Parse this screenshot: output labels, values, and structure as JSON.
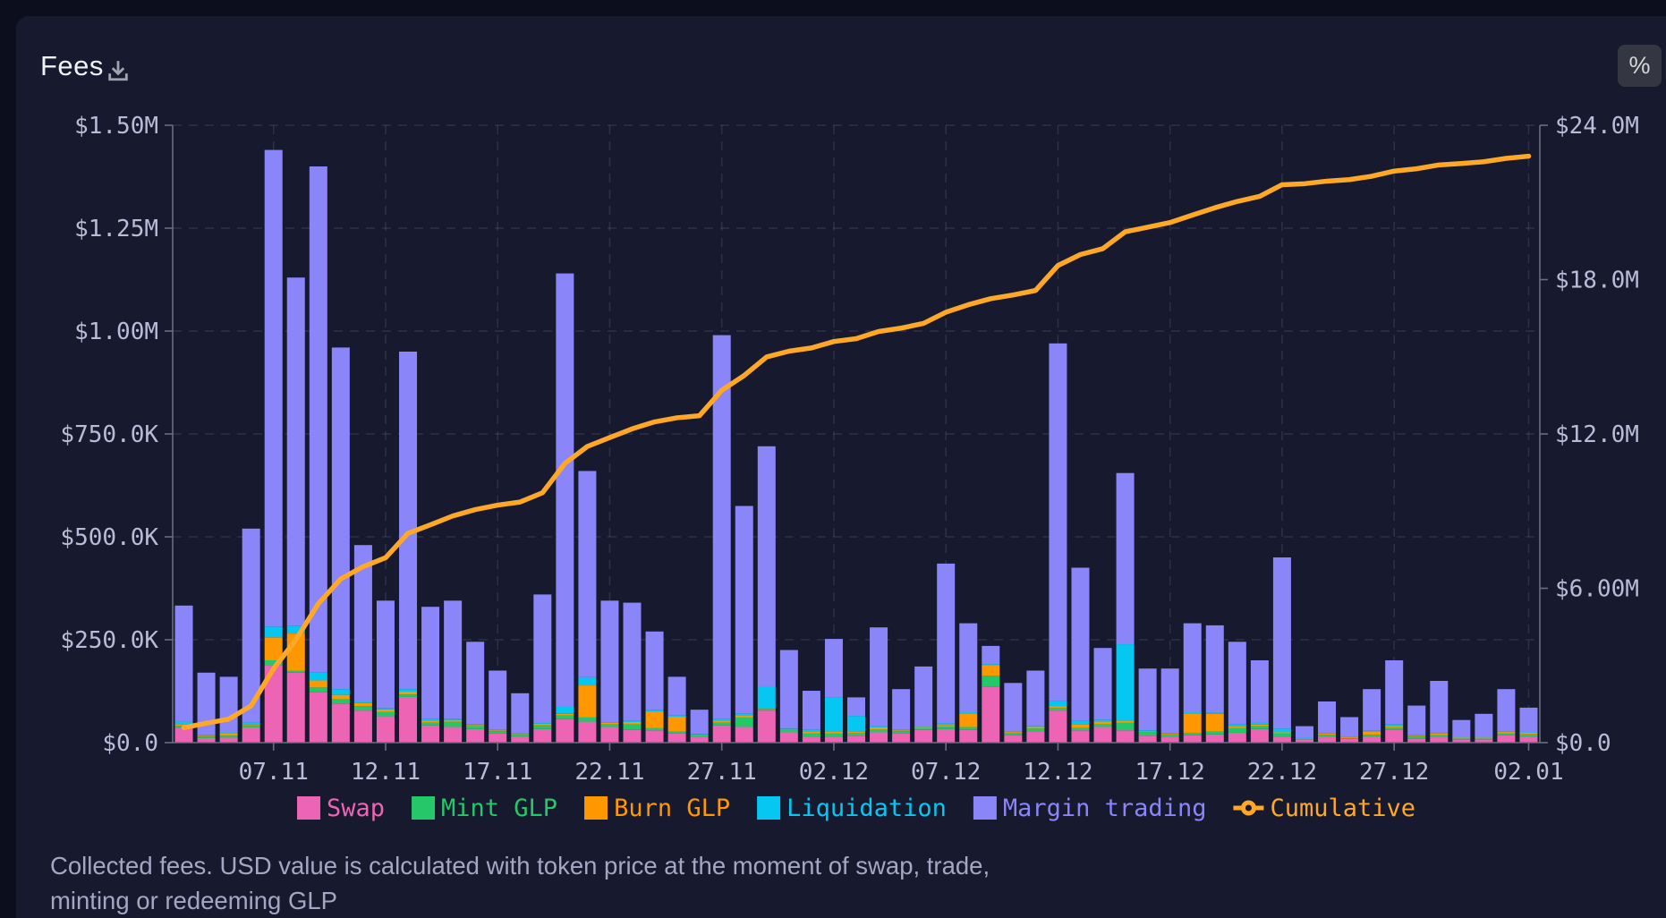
{
  "header": {
    "title": "Fees",
    "percent_button": "%"
  },
  "footnote": {
    "line1": "Collected fees. USD value is calculated with token price at the moment of swap, trade,",
    "line2": "minting or redeeming GLP"
  },
  "colors": {
    "page_bg": "#0c0e1d",
    "card_bg": "#171a2e",
    "swap": "#ee64b4",
    "mint_glp": "#24c869",
    "burn_glp": "#ff9800",
    "liquidation": "#06c7f2",
    "margin_trading": "#8a85f8",
    "cumulative": "#ffa828"
  },
  "chart_data": {
    "type": "bar",
    "subtype": "stacked-bars-with-cumulative-line",
    "units": "USD thousands",
    "title": "Fees",
    "bar_count": 61,
    "x_ticks": {
      "indices": [
        4,
        9,
        14,
        19,
        24,
        29,
        34,
        39,
        44,
        49,
        54,
        60
      ],
      "labels": [
        "07.11",
        "12.11",
        "17.11",
        "22.11",
        "27.11",
        "02.12",
        "07.12",
        "12.12",
        "17.12",
        "22.12",
        "27.12",
        "02.01"
      ]
    },
    "left_axis": {
      "max": 1500,
      "tick_values": [
        0,
        250,
        500,
        750,
        1000,
        1250,
        1500
      ],
      "tick_labels": [
        "$0.0",
        "$250.0K",
        "$500.0K",
        "$750.0K",
        "$1.00M",
        "$1.25M",
        "$1.50M"
      ]
    },
    "right_axis": {
      "max": 24000,
      "tick_values": [
        0,
        6000,
        12000,
        18000,
        24000
      ],
      "tick_labels": [
        "$0.0",
        "$6.00M",
        "$12.0M",
        "$18.0M",
        "$24.0M"
      ]
    },
    "series": [
      {
        "name": "Swap",
        "color": "#ee64b4",
        "values": [
          36,
          11,
          12,
          37,
          187,
          170,
          122,
          95,
          78,
          64,
          111,
          42,
          38,
          33,
          22,
          15,
          33,
          57,
          51,
          38,
          31,
          30,
          22,
          13,
          42,
          38,
          78,
          25,
          15,
          15,
          17,
          25,
          22,
          31,
          33,
          31,
          135,
          18,
          28,
          78,
          30,
          38,
          30,
          17,
          13,
          18,
          20,
          24,
          33,
          15,
          8,
          15,
          9,
          15,
          31,
          9,
          13,
          8,
          8,
          18,
          15
        ]
      },
      {
        "name": "Mint GLP",
        "color": "#24c869",
        "values": [
          5,
          4,
          5,
          5,
          13,
          5,
          12,
          10,
          11,
          11,
          6,
          7,
          13,
          7,
          6,
          4,
          9,
          9,
          10,
          6,
          13,
          5,
          5,
          5,
          7,
          23,
          4,
          6,
          7,
          7,
          7,
          6,
          6,
          4,
          6,
          7,
          28,
          6,
          6,
          6,
          6,
          6,
          18,
          9,
          7,
          6,
          7,
          11,
          7,
          7,
          2,
          4,
          2,
          4,
          6,
          6,
          5,
          2,
          3,
          4,
          5
        ]
      },
      {
        "name": "Burn GLP",
        "color": "#ff9800",
        "values": [
          4,
          2,
          6,
          3,
          56,
          90,
          17,
          11,
          7,
          6,
          7,
          5,
          4,
          3,
          2,
          2,
          4,
          4,
          78,
          4,
          6,
          40,
          36,
          2,
          5,
          6,
          2,
          2,
          5,
          5,
          3,
          6,
          2,
          3,
          4,
          33,
          25,
          2,
          4,
          4,
          9,
          7,
          6,
          2,
          2,
          47,
          43,
          5,
          4,
          3,
          1,
          3,
          2,
          8,
          4,
          2,
          4,
          2,
          1,
          4,
          4
        ]
      },
      {
        "name": "Liquidation",
        "color": "#06c7f2",
        "values": [
          6,
          2,
          2,
          3,
          26,
          18,
          20,
          14,
          4,
          3,
          6,
          3,
          3,
          2,
          1,
          1,
          4,
          17,
          20,
          2,
          3,
          4,
          4,
          1,
          3,
          3,
          53,
          1,
          4,
          83,
          38,
          3,
          1,
          1,
          4,
          4,
          3,
          1,
          3,
          14,
          8,
          5,
          185,
          2,
          1,
          4,
          3,
          4,
          5,
          9,
          1,
          1,
          1,
          2,
          4,
          1,
          2,
          1,
          1,
          1,
          1
        ]
      },
      {
        "name": "Margin trading",
        "color": "#8a85f8",
        "values": [
          282,
          151,
          135,
          472,
          1158,
          847,
          1229,
          830,
          380,
          261,
          820,
          273,
          287,
          200,
          144,
          98,
          310,
          1053,
          501,
          295,
          287,
          191,
          93,
          59,
          933,
          505,
          583,
          191,
          95,
          142,
          45,
          240,
          99,
          146,
          388,
          215,
          44,
          118,
          134,
          868,
          372,
          174,
          416,
          150,
          157,
          215,
          212,
          201,
          151,
          416,
          28,
          77,
          48,
          101,
          155,
          72,
          126,
          42,
          57,
          103,
          60
        ]
      }
    ],
    "line_series": {
      "name": "Cumulative",
      "color": "#ffa828",
      "axis": "right",
      "values": [
        583,
        753,
        913,
        1433,
        2873,
        4003,
        5403,
        6363,
        6843,
        7188,
        8138,
        8468,
        8813,
        9058,
        9233,
        9353,
        9713,
        10853,
        11513,
        11858,
        12198,
        12468,
        12628,
        12708,
        13698,
        14273,
        14993,
        15218,
        15343,
        15593,
        15703,
        15983,
        16113,
        16298,
        16733,
        17023,
        17258,
        17403,
        17578,
        18548,
        18973,
        19203,
        19858,
        20038,
        20218,
        20508,
        20793,
        21038,
        21238,
        21688,
        21728,
        21828,
        21888,
        22018,
        22218,
        22308,
        22458,
        22513,
        22583,
        22713,
        22798
      ]
    },
    "legend_position": "bottom-center",
    "grid": true
  }
}
